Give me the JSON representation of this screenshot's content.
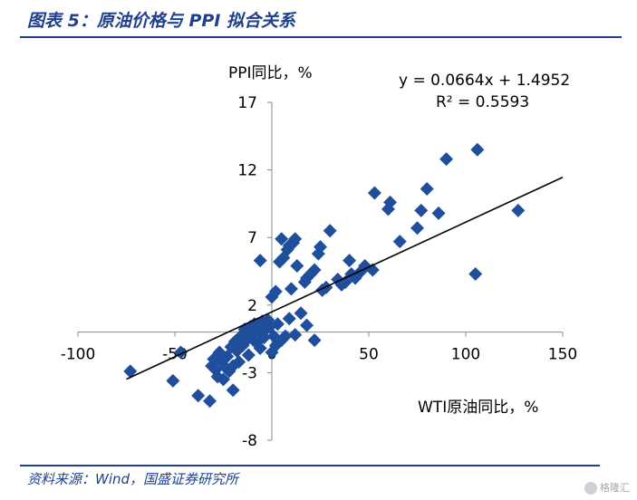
{
  "header": {
    "title": "图表 5：原油价格与 PPI 拟合关系"
  },
  "footer": {
    "source": "资料来源：Wind，国盛证券研究所",
    "watermark": "格隆汇"
  },
  "chart_data": {
    "type": "scatter",
    "xlabel": "WTI原油同比，%",
    "ylabel": "PPI同比，%",
    "xlim": [
      -100,
      150
    ],
    "ylim": [
      -8,
      17
    ],
    "xticks": [
      "-100",
      "-50",
      "0",
      "50",
      "100",
      "150"
    ],
    "yticks": [
      "17",
      "12",
      "7",
      "2",
      "-3",
      "-8"
    ],
    "xtick_values": [
      -100,
      -50,
      0,
      50,
      100,
      150
    ],
    "ytick_values": [
      17,
      12,
      7,
      2,
      -3,
      -8
    ],
    "grid": false,
    "marker_color": "#1f4e9c",
    "trendline": {
      "slope": 0.0664,
      "intercept": 1.4952,
      "x_range": [
        -75,
        150
      ],
      "equation": "y = 0.0664x + 1.4952",
      "r2": "R² = 0.5593"
    },
    "points": [
      [
        -73,
        -2.9
      ],
      [
        -51,
        -3.6
      ],
      [
        -47,
        -1.5
      ],
      [
        -38,
        -4.7
      ],
      [
        -32,
        -5.1
      ],
      [
        -31,
        -2.5
      ],
      [
        -30,
        -2.0
      ],
      [
        -29,
        -2.8
      ],
      [
        -28,
        -3.3
      ],
      [
        -27,
        -1.5
      ],
      [
        -26,
        -2.2
      ],
      [
        -25,
        -3.5
      ],
      [
        -24,
        -2.6
      ],
      [
        -23,
        -1.8
      ],
      [
        -22,
        -2.9
      ],
      [
        -21,
        -1.1
      ],
      [
        -20,
        -4.3
      ],
      [
        -20,
        -2.5
      ],
      [
        -19,
        -0.7
      ],
      [
        -18,
        -1.4
      ],
      [
        -17,
        -2.2
      ],
      [
        -16,
        -0.3
      ],
      [
        -15,
        -1.0
      ],
      [
        -14,
        0.2
      ],
      [
        -13,
        -0.6
      ],
      [
        -12,
        -1.7
      ],
      [
        -11,
        0.4
      ],
      [
        -10,
        -0.2
      ],
      [
        -9,
        0.6
      ],
      [
        -8,
        -0.8
      ],
      [
        -7,
        0.1
      ],
      [
        -6,
        -1.2
      ],
      [
        -5,
        0.8
      ],
      [
        -4,
        -0.4
      ],
      [
        -3,
        0.2
      ],
      [
        -2,
        0.9
      ],
      [
        -1,
        0.4
      ],
      [
        0,
        -1.5
      ],
      [
        1,
        -0.3
      ],
      [
        2,
        -1.0
      ],
      [
        3,
        0.6
      ],
      [
        5,
        -0.6
      ],
      [
        7,
        -0.3
      ],
      [
        9,
        1.0
      ],
      [
        12,
        -0.2
      ],
      [
        15,
        1.4
      ],
      [
        18,
        0.5
      ],
      [
        22,
        -0.6
      ],
      [
        0,
        2.6
      ],
      [
        2,
        3.0
      ],
      [
        4,
        5.2
      ],
      [
        5,
        6.9
      ],
      [
        6,
        5.5
      ],
      [
        8,
        6.1
      ],
      [
        9,
        6.4
      ],
      [
        10,
        3.2
      ],
      [
        11,
        6.6
      ],
      [
        12,
        6.9
      ],
      [
        13,
        4.9
      ],
      [
        -6,
        5.3
      ],
      [
        17,
        3.7
      ],
      [
        18,
        4.0
      ],
      [
        20,
        4.3
      ],
      [
        22,
        4.6
      ],
      [
        24,
        5.8
      ],
      [
        25,
        6.3
      ],
      [
        26,
        3.1
      ],
      [
        28,
        3.3
      ],
      [
        30,
        7.5
      ],
      [
        34,
        3.9
      ],
      [
        36,
        3.5
      ],
      [
        38,
        3.7
      ],
      [
        40,
        5.3
      ],
      [
        41,
        4.3
      ],
      [
        43,
        4.0
      ],
      [
        46,
        4.5
      ],
      [
        48,
        4.9
      ],
      [
        52,
        4.6
      ],
      [
        53,
        10.3
      ],
      [
        60,
        9.1
      ],
      [
        61,
        9.6
      ],
      [
        66,
        6.7
      ],
      [
        75,
        7.7
      ],
      [
        77,
        9.0
      ],
      [
        80,
        10.6
      ],
      [
        86,
        8.8
      ],
      [
        90,
        12.8
      ],
      [
        105,
        4.3
      ],
      [
        106,
        13.5
      ],
      [
        127,
        9.0
      ]
    ]
  }
}
